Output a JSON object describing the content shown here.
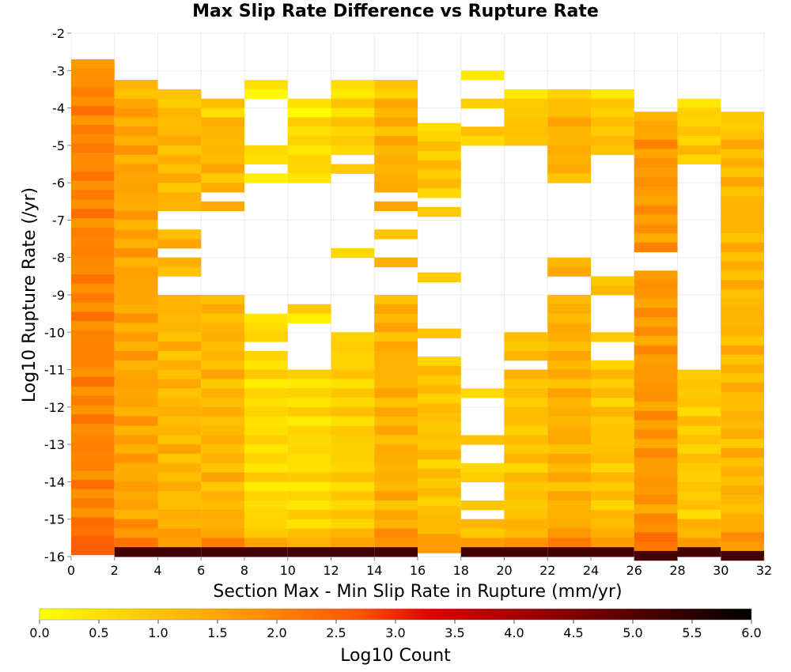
{
  "chart_data": {
    "type": "heatmap",
    "title": "Max Slip Rate Difference vs Rupture Rate",
    "xlabel": "Section Max - Min Slip Rate in Rupture (mm/yr)",
    "ylabel": "Log10 Rupture Rate (/yr)",
    "xlim": [
      0,
      32
    ],
    "ylim": [
      -16,
      -2
    ],
    "x_ticks": [
      "0",
      "2",
      "4",
      "6",
      "8",
      "10",
      "12",
      "14",
      "16",
      "18",
      "20",
      "22",
      "24",
      "26",
      "28",
      "30",
      "32"
    ],
    "y_ticks": [
      "-2",
      "-3",
      "-4",
      "-5",
      "-6",
      "-7",
      "-8",
      "-9",
      "-10",
      "-11",
      "-12",
      "-13",
      "-14",
      "-15",
      "-16"
    ],
    "x_bin_width": 2,
    "y_bin_height": 0.25,
    "grid": true,
    "colorbar": {
      "label": "Log10 Count",
      "range": [
        0,
        6
      ],
      "ticks": [
        "0.0",
        "0.5",
        "1.0",
        "1.5",
        "2.0",
        "2.5",
        "3.0",
        "3.5",
        "4.0",
        "4.5",
        "5.0",
        "5.5",
        "6.0"
      ],
      "stops": [
        "#ffff00",
        "#ffa500",
        "#ff5500",
        "#e00000",
        "#800000",
        "#000000"
      ]
    },
    "columns": [
      {
        "x_start": 0,
        "top": -2.7,
        "bottom": -16,
        "base": 2.0,
        "gaps": []
      },
      {
        "x_start": 2,
        "top": -3.25,
        "bottom": -16,
        "base": 1.5,
        "gaps": []
      },
      {
        "x_start": 4,
        "top": -3.5,
        "bottom": -16,
        "base": 1.2,
        "gaps": [
          [
            -6.75,
            -7.25
          ],
          [
            -7.75,
            -7.9
          ],
          [
            -8.6,
            -8.9
          ]
        ]
      },
      {
        "x_start": 6,
        "top": -3.75,
        "bottom": -16,
        "base": 1.2,
        "gaps": [
          [
            -6.25,
            -6.5
          ],
          [
            -6.75,
            -9.0
          ]
        ]
      },
      {
        "x_start": 8,
        "top": -3.25,
        "bottom": -16,
        "base": 0.6,
        "gaps": [
          [
            -3.85,
            -5.0
          ],
          [
            -5.6,
            -5.85
          ],
          [
            -6.1,
            -9.6
          ],
          [
            -10.2,
            -10.5
          ]
        ]
      },
      {
        "x_start": 10,
        "top": -3.75,
        "bottom": -16,
        "base": 0.6,
        "gaps": [
          [
            -6.1,
            -9.25
          ],
          [
            -9.75,
            -11.0
          ],
          [
            -14.4,
            -14.6
          ]
        ]
      },
      {
        "x_start": 12,
        "top": -3.25,
        "bottom": -16,
        "base": 0.8,
        "gaps": [
          [
            -5.25,
            -5.5
          ],
          [
            -5.75,
            -7.85
          ],
          [
            -8.1,
            -10.1
          ]
        ]
      },
      {
        "x_start": 14,
        "top": -3.25,
        "bottom": -16,
        "base": 1.3,
        "gaps": [
          [
            -6.25,
            -6.5
          ],
          [
            -6.75,
            -7.3
          ],
          [
            -7.6,
            -8.1
          ],
          [
            -8.35,
            -9.0
          ]
        ]
      },
      {
        "x_start": 16,
        "top": -4.4,
        "bottom": -16,
        "base": 1.0,
        "gaps": [
          [
            -6.5,
            -6.6
          ],
          [
            -6.9,
            -8.4
          ],
          [
            -8.6,
            -9.9
          ],
          [
            -10.2,
            -10.7
          ]
        ]
      },
      {
        "x_start": 18,
        "top": -3.0,
        "bottom": -16,
        "base": 0.8,
        "gaps": [
          [
            -3.3,
            -3.85
          ],
          [
            -4.1,
            -4.6
          ],
          [
            -4.9,
            -11.5
          ],
          [
            -11.8,
            -12.7
          ],
          [
            -13.0,
            -13.6
          ],
          [
            -13.9,
            -14.4
          ],
          [
            -14.7,
            -15.0
          ]
        ]
      },
      {
        "x_start": 20,
        "top": -3.5,
        "bottom": -16,
        "base": 1.0,
        "gaps": [
          [
            -5.0,
            -10.1
          ],
          [
            -10.7,
            -11.0
          ]
        ]
      },
      {
        "x_start": 22,
        "top": -3.5,
        "bottom": -16,
        "base": 1.3,
        "gaps": [
          [
            -5.9,
            -6.4
          ],
          [
            -6.6,
            -8.1
          ],
          [
            -8.4,
            -9.0
          ]
        ]
      },
      {
        "x_start": 24,
        "top": -3.5,
        "bottom": -16,
        "base": 1.0,
        "gaps": [
          [
            -5.25,
            -8.6
          ],
          [
            -8.9,
            -9.9
          ],
          [
            -10.2,
            -10.7
          ]
        ]
      },
      {
        "x_start": 26,
        "top": -4.1,
        "bottom": -16,
        "base": 1.7,
        "gaps": [
          [
            -7.85,
            -8.4
          ]
        ]
      },
      {
        "x_start": 28,
        "top": -3.75,
        "bottom": -16,
        "base": 0.9,
        "gaps": [
          [
            -5.6,
            -11.0
          ]
        ]
      },
      {
        "x_start": 30,
        "top": -4.1,
        "bottom": -16,
        "base": 1.2,
        "gaps": []
      }
    ],
    "bottom_row_log10_count": 5.2
  }
}
